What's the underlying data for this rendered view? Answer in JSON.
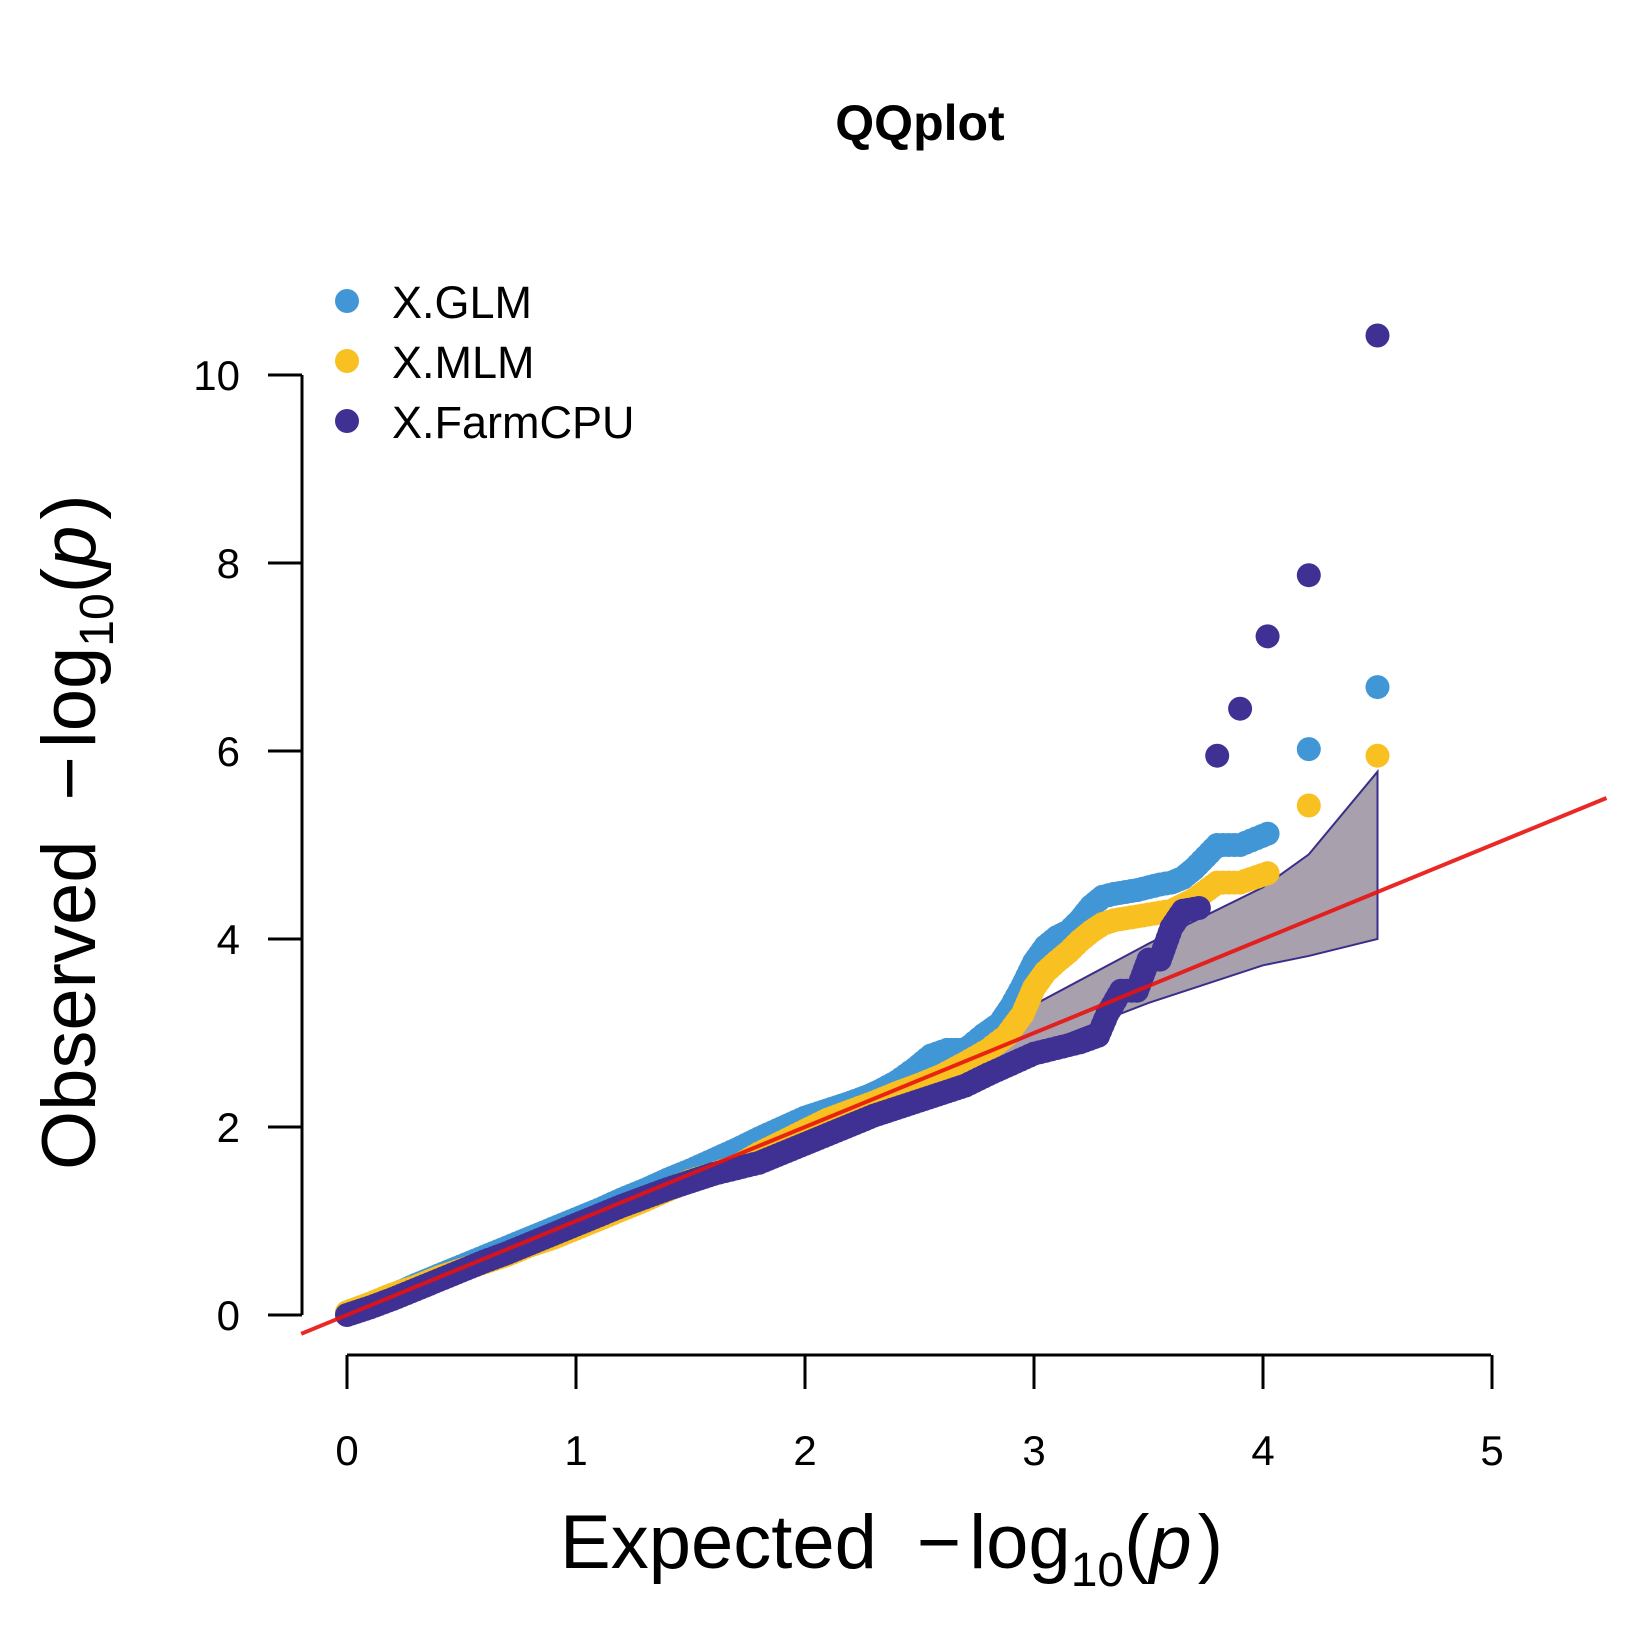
{
  "chart_data": {
    "type": "scatter",
    "title": "QQplot",
    "xlabel": {
      "main": "Expected",
      "minus": "−",
      "log": "log",
      "base": "10",
      "lparen": "(",
      "var": "p",
      "rparen": ")"
    },
    "ylabel": {
      "main": "Observed",
      "minus": "−",
      "log": "log",
      "base": "10",
      "lparen": "(",
      "var": "p",
      "rparen": ")"
    },
    "xlim": [
      0,
      5
    ],
    "ylim": [
      0,
      10
    ],
    "x_ticks": [
      "0",
      "1",
      "2",
      "3",
      "4",
      "5"
    ],
    "y_ticks": [
      "0",
      "2",
      "4",
      "6",
      "8",
      "10"
    ],
    "grid": false,
    "legend_position": "top-left",
    "reference_line": {
      "slope": 1,
      "intercept": 0,
      "color": "#e8120f"
    },
    "confidence_band": {
      "x": [
        0,
        0.5,
        1,
        1.5,
        2,
        2.5,
        3,
        3.5,
        4,
        4.2,
        4.5
      ],
      "upper": [
        0.1,
        0.6,
        1.1,
        1.62,
        2.15,
        2.7,
        3.3,
        3.95,
        4.55,
        4.9,
        5.78
      ],
      "lower": [
        0.0,
        0.47,
        0.95,
        1.42,
        1.9,
        2.38,
        2.85,
        3.32,
        3.72,
        3.82,
        4.0
      ],
      "fill": "#9a8fa0",
      "stroke": "#3b2e8a"
    },
    "series": [
      {
        "name": "X.GLM",
        "color": "#4196d6",
        "x": [
          0,
          0.1,
          0.2,
          0.3,
          0.4,
          0.5,
          0.6,
          0.7,
          0.8,
          0.9,
          1.0,
          1.1,
          1.2,
          1.3,
          1.4,
          1.5,
          1.6,
          1.7,
          1.8,
          1.9,
          2.0,
          2.1,
          2.2,
          2.3,
          2.4,
          2.48,
          2.55,
          2.62,
          2.7,
          2.78,
          2.85,
          2.9,
          2.95,
          3.0,
          3.05,
          3.1,
          3.15,
          3.2,
          3.25,
          3.3,
          3.35,
          3.4,
          3.45,
          3.5,
          3.55,
          3.6,
          3.65,
          3.7,
          3.8,
          3.9,
          4.02,
          4.2,
          4.5
        ],
        "y": [
          0.02,
          0.11,
          0.21,
          0.32,
          0.42,
          0.52,
          0.62,
          0.72,
          0.82,
          0.92,
          1.02,
          1.12,
          1.23,
          1.33,
          1.44,
          1.54,
          1.65,
          1.76,
          1.88,
          1.99,
          2.1,
          2.18,
          2.26,
          2.35,
          2.48,
          2.62,
          2.76,
          2.82,
          2.82,
          2.98,
          3.1,
          3.28,
          3.5,
          3.75,
          3.92,
          4.02,
          4.08,
          4.2,
          4.35,
          4.45,
          4.48,
          4.5,
          4.52,
          4.55,
          4.58,
          4.6,
          4.65,
          4.75,
          5.0,
          5.0,
          5.12,
          6.02,
          6.68
        ]
      },
      {
        "name": "X.MLM",
        "color": "#f8c020",
        "x": [
          0,
          0.1,
          0.2,
          0.3,
          0.4,
          0.5,
          0.6,
          0.7,
          0.8,
          0.9,
          1.0,
          1.1,
          1.2,
          1.3,
          1.4,
          1.5,
          1.6,
          1.7,
          1.8,
          1.9,
          2.0,
          2.1,
          2.2,
          2.3,
          2.4,
          2.5,
          2.6,
          2.7,
          2.8,
          2.88,
          2.95,
          3.0,
          3.05,
          3.1,
          3.15,
          3.2,
          3.25,
          3.3,
          3.35,
          3.4,
          3.45,
          3.5,
          3.55,
          3.6,
          3.65,
          3.7,
          3.8,
          3.9,
          4.02,
          4.2,
          4.5
        ],
        "y": [
          0.03,
          0.12,
          0.22,
          0.3,
          0.4,
          0.48,
          0.56,
          0.64,
          0.74,
          0.82,
          0.92,
          1.02,
          1.12,
          1.22,
          1.33,
          1.43,
          1.5,
          1.58,
          1.72,
          1.84,
          1.96,
          2.08,
          2.17,
          2.26,
          2.36,
          2.45,
          2.55,
          2.68,
          2.82,
          2.97,
          3.2,
          3.48,
          3.65,
          3.76,
          3.86,
          3.98,
          4.08,
          4.16,
          4.2,
          4.22,
          4.24,
          4.26,
          4.28,
          4.3,
          4.36,
          4.42,
          4.6,
          4.6,
          4.7,
          5.42,
          5.95
        ]
      },
      {
        "name": "X.FarmCPU",
        "color": "#3f3193",
        "x": [
          0,
          0.1,
          0.2,
          0.3,
          0.4,
          0.5,
          0.6,
          0.7,
          0.8,
          0.9,
          1.0,
          1.1,
          1.2,
          1.3,
          1.4,
          1.5,
          1.6,
          1.7,
          1.8,
          1.9,
          2.0,
          2.1,
          2.2,
          2.3,
          2.4,
          2.5,
          2.6,
          2.7,
          2.8,
          2.9,
          3.0,
          3.1,
          3.2,
          3.28,
          3.32,
          3.38,
          3.45,
          3.5,
          3.55,
          3.6,
          3.65,
          3.72,
          3.8,
          3.9,
          4.02,
          4.2,
          4.5
        ],
        "y": [
          0.0,
          0.08,
          0.17,
          0.27,
          0.37,
          0.47,
          0.57,
          0.66,
          0.76,
          0.86,
          0.96,
          1.06,
          1.16,
          1.25,
          1.34,
          1.42,
          1.5,
          1.56,
          1.62,
          1.72,
          1.82,
          1.92,
          2.02,
          2.12,
          2.2,
          2.28,
          2.36,
          2.44,
          2.56,
          2.67,
          2.78,
          2.84,
          2.9,
          2.97,
          3.2,
          3.45,
          3.45,
          3.78,
          3.78,
          4.12,
          4.3,
          4.33,
          5.95,
          6.45,
          7.22,
          7.87,
          10.42
        ]
      }
    ]
  }
}
